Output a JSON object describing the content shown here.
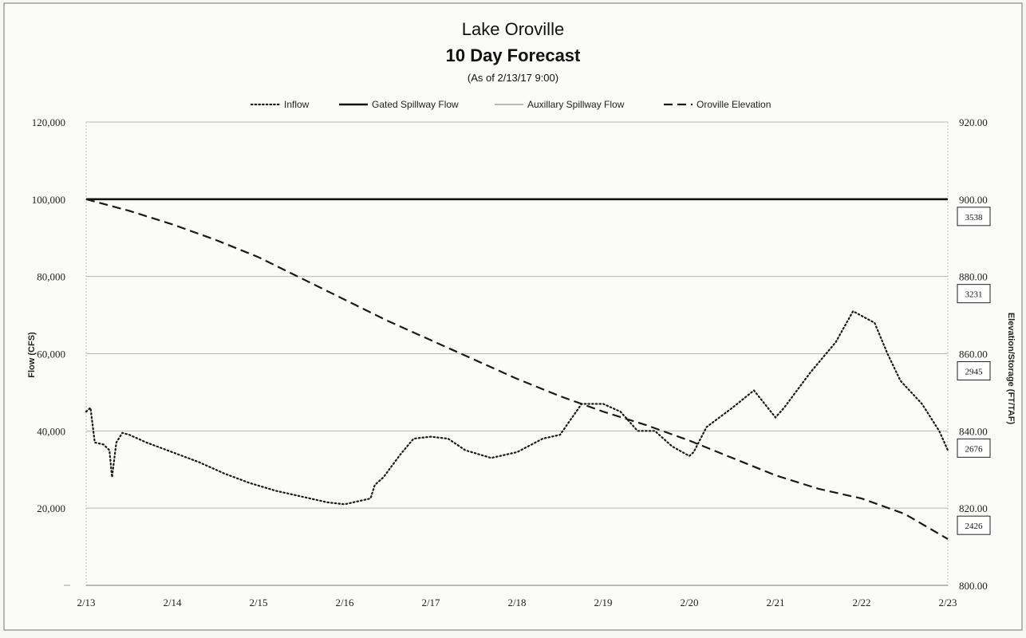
{
  "chart_data": {
    "type": "line",
    "title": "Lake Oroville",
    "subtitle": "10 Day Forecast",
    "as_of": "(As of 2/13/17 9:00)",
    "ylabel": "Flow (CFS)",
    "y2label": "Elevation/Storage (FT/TAF)",
    "xlabel": "",
    "xlim": [
      0,
      10
    ],
    "ylim": [
      0,
      120000
    ],
    "y2lim": [
      800,
      920
    ],
    "grid": true,
    "legend_position": "top",
    "x_ticks": [
      {
        "x": 0,
        "label": "2/13"
      },
      {
        "x": 1,
        "label": "2/14"
      },
      {
        "x": 2,
        "label": "2/15"
      },
      {
        "x": 3,
        "label": "2/16"
      },
      {
        "x": 4,
        "label": "2/17"
      },
      {
        "x": 5,
        "label": "2/18"
      },
      {
        "x": 6,
        "label": "2/19"
      },
      {
        "x": 7,
        "label": "2/20"
      },
      {
        "x": 8,
        "label": "2/21"
      },
      {
        "x": 9,
        "label": "2/22"
      },
      {
        "x": 10,
        "label": "2/23"
      }
    ],
    "y_ticks": [
      {
        "value": 20000,
        "label": "20,000"
      },
      {
        "value": 40000,
        "label": "40,000"
      },
      {
        "value": 60000,
        "label": "60,000"
      },
      {
        "value": 80000,
        "label": "80,000"
      },
      {
        "value": 100000,
        "label": "100,000"
      },
      {
        "value": 120000,
        "label": "120,000"
      }
    ],
    "y2_ticks": [
      {
        "value": 800,
        "label": "800.00"
      },
      {
        "value": 820,
        "label": "820.00"
      },
      {
        "value": 840,
        "label": "840.00"
      },
      {
        "value": 860,
        "label": "860.00"
      },
      {
        "value": 880,
        "label": "880.00"
      },
      {
        "value": 900,
        "label": "900.00"
      },
      {
        "value": 920,
        "label": "920.00"
      }
    ],
    "storage_labels": [
      {
        "elevation": 900,
        "label": "3538"
      },
      {
        "elevation": 880,
        "label": "3231"
      },
      {
        "elevation": 860,
        "label": "2945"
      },
      {
        "elevation": 840,
        "label": "2676"
      },
      {
        "elevation": 820,
        "label": "2426"
      }
    ],
    "series": [
      {
        "name": "Inflow",
        "axis": "left",
        "style": "dotted",
        "color": "#1a1a1a",
        "points": [
          [
            0.0,
            45000
          ],
          [
            0.05,
            46000
          ],
          [
            0.1,
            37000
          ],
          [
            0.2,
            36500
          ],
          [
            0.27,
            35000
          ],
          [
            0.3,
            28000
          ],
          [
            0.35,
            37000
          ],
          [
            0.42,
            39500
          ],
          [
            0.5,
            39000
          ],
          [
            0.7,
            37000
          ],
          [
            1.0,
            34500
          ],
          [
            1.3,
            32000
          ],
          [
            1.6,
            29000
          ],
          [
            1.9,
            26500
          ],
          [
            2.2,
            24500
          ],
          [
            2.5,
            23000
          ],
          [
            2.8,
            21500
          ],
          [
            3.0,
            21000
          ],
          [
            3.2,
            22000
          ],
          [
            3.3,
            22500
          ],
          [
            3.35,
            26000
          ],
          [
            3.45,
            28000
          ],
          [
            3.55,
            31000
          ],
          [
            3.65,
            34000
          ],
          [
            3.8,
            38000
          ],
          [
            4.0,
            38500
          ],
          [
            4.2,
            38000
          ],
          [
            4.4,
            35000
          ],
          [
            4.7,
            33000
          ],
          [
            5.0,
            34500
          ],
          [
            5.3,
            38000
          ],
          [
            5.5,
            39000
          ],
          [
            5.75,
            47000
          ],
          [
            6.0,
            47000
          ],
          [
            6.2,
            45000
          ],
          [
            6.4,
            40000
          ],
          [
            6.6,
            40000
          ],
          [
            6.8,
            36000
          ],
          [
            7.0,
            33500
          ],
          [
            7.05,
            34500
          ],
          [
            7.2,
            41000
          ],
          [
            7.5,
            46000
          ],
          [
            7.75,
            50500
          ],
          [
            8.0,
            43500
          ],
          [
            8.1,
            46000
          ],
          [
            8.4,
            55000
          ],
          [
            8.7,
            63000
          ],
          [
            8.9,
            71000
          ],
          [
            9.15,
            68000
          ],
          [
            9.3,
            60000
          ],
          [
            9.45,
            53000
          ],
          [
            9.7,
            47000
          ],
          [
            9.9,
            40000
          ],
          [
            10.0,
            35000
          ]
        ]
      },
      {
        "name": "Gated Spillway Flow",
        "axis": "left",
        "style": "solid",
        "color": "#111111",
        "points": [
          [
            0.0,
            100000
          ],
          [
            10.0,
            100000
          ]
        ]
      },
      {
        "name": "Auxillary Spillway Flow",
        "axis": "left",
        "style": "thin",
        "color": "#777777",
        "points": [
          [
            0.0,
            0
          ],
          [
            10.0,
            0
          ]
        ]
      },
      {
        "name": "Oroville Elevation",
        "axis": "right",
        "style": "dashed",
        "color": "#1a1a1a",
        "points": [
          [
            0.0,
            900.0
          ],
          [
            0.5,
            897.0
          ],
          [
            1.0,
            893.5
          ],
          [
            1.5,
            889.5
          ],
          [
            2.0,
            885.0
          ],
          [
            2.5,
            879.5
          ],
          [
            3.0,
            874.0
          ],
          [
            3.5,
            868.5
          ],
          [
            4.0,
            863.5
          ],
          [
            4.5,
            858.5
          ],
          [
            5.0,
            853.5
          ],
          [
            5.5,
            849.0
          ],
          [
            6.0,
            845.0
          ],
          [
            6.5,
            841.5
          ],
          [
            7.0,
            837.5
          ],
          [
            7.5,
            833.0
          ],
          [
            8.0,
            828.5
          ],
          [
            8.5,
            825.0
          ],
          [
            9.0,
            822.5
          ],
          [
            9.5,
            818.5
          ],
          [
            10.0,
            812.0
          ]
        ]
      }
    ]
  }
}
